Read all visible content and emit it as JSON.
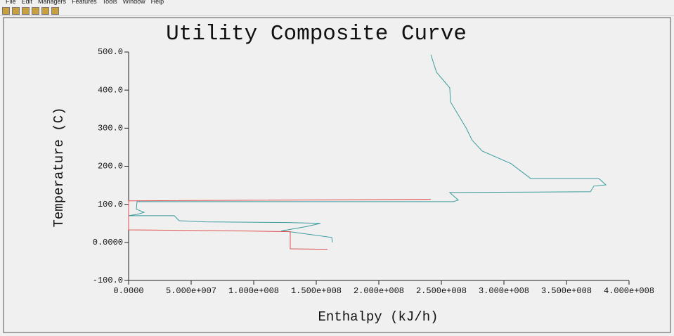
{
  "menu": [
    "File",
    "Edit",
    "Managers",
    "Features",
    "Tools",
    "Window",
    "Help"
  ],
  "chart_data": {
    "type": "line",
    "title": "Utility Composite Curve",
    "x_label": "Enthalpy (kJ/h)",
    "y_label": "Temperature (C)",
    "xlim": [
      0,
      400000000
    ],
    "ylim": [
      -100,
      500
    ],
    "xticks": [
      {
        "value": 0,
        "label": "0.0000"
      },
      {
        "value": 50000000,
        "label": "5.000e+007"
      },
      {
        "value": 100000000,
        "label": "1.000e+008"
      },
      {
        "value": 150000000,
        "label": "1.500e+008"
      },
      {
        "value": 200000000,
        "label": "2.000e+008"
      },
      {
        "value": 250000000,
        "label": "2.500e+008"
      },
      {
        "value": 300000000,
        "label": "3.000e+008"
      },
      {
        "value": 350000000,
        "label": "3.500e+008"
      },
      {
        "value": 400000000,
        "label": "4.000e+008"
      }
    ],
    "yticks": [
      {
        "value": -100,
        "label": "-100.0"
      },
      {
        "value": 0,
        "label": "0.0000"
      },
      {
        "value": 100,
        "label": "100.0"
      },
      {
        "value": 200,
        "label": "200.0"
      },
      {
        "value": 300,
        "label": "300.0"
      },
      {
        "value": 400,
        "label": "400.0"
      },
      {
        "value": 500,
        "label": "500.0"
      }
    ],
    "series": [
      {
        "color": "#3c9c9c",
        "x": [
          241600000,
          246100000,
          256700000,
          257300000,
          269700000,
          274700000,
          282600000,
          305600000,
          321300000,
          375800000,
          381500000,
          371900000,
          369100000,
          256700000,
          263500000,
          259600000,
          6700000,
          6200000,
          12400000,
          7300000,
          0,
          36500000,
          40400000,
          61800000,
          127500000,
          153400000,
          142700000,
          121900000,
          128700000,
          162400000,
          162900000
        ],
        "values": [
          493,
          447,
          406,
          369,
          301,
          268,
          240,
          207,
          168,
          168,
          151,
          148,
          133,
          131,
          111,
          107,
          107,
          87,
          79,
          74,
          70,
          70,
          57,
          54,
          52,
          50,
          42,
          30,
          28,
          13,
          0
        ]
      },
      {
        "color": "#e05050",
        "x": [
          159000000,
          129200000,
          129200000,
          93800000,
          0,
          0,
          241600000
        ],
        "values": [
          -18,
          -17,
          28,
          30,
          33,
          109,
          113
        ]
      }
    ]
  }
}
